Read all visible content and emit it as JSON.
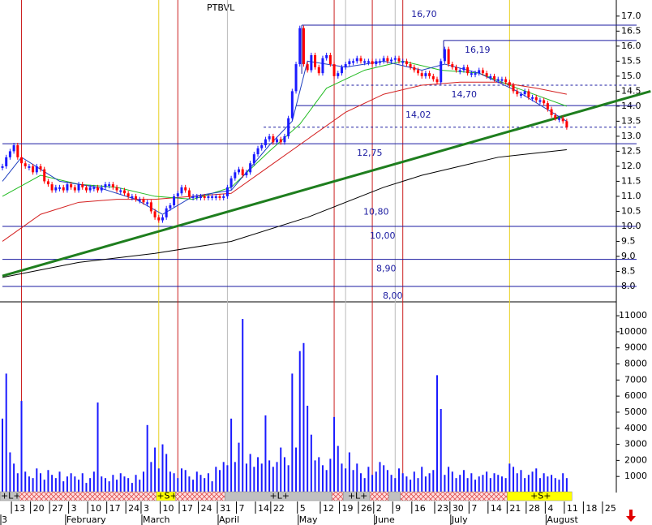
{
  "chart_data": {
    "type": "stock",
    "title": "PTBVL",
    "xlim": [
      0,
      161
    ],
    "xticks": [
      {
        "value": 3,
        "label": "13"
      },
      {
        "value": 8,
        "label": "20"
      },
      {
        "value": 13,
        "label": "27"
      },
      {
        "value": 18,
        "label": "3"
      },
      {
        "value": 23,
        "label": "10"
      },
      {
        "value": 28,
        "label": "17"
      },
      {
        "value": 33,
        "label": "24"
      },
      {
        "value": 37,
        "label": "3"
      },
      {
        "value": 42,
        "label": "10"
      },
      {
        "value": 47,
        "label": "17"
      },
      {
        "value": 52,
        "label": "24"
      },
      {
        "value": 57,
        "label": "31"
      },
      {
        "value": 62,
        "label": "7"
      },
      {
        "value": 67,
        "label": "14"
      },
      {
        "value": 71,
        "label": "22"
      },
      {
        "value": 78,
        "label": "5"
      },
      {
        "value": 84,
        "label": "12"
      },
      {
        "value": 89,
        "label": "19"
      },
      {
        "value": 94,
        "label": "26"
      },
      {
        "value": 98,
        "label": "2"
      },
      {
        "value": 103,
        "label": "9"
      },
      {
        "value": 108,
        "label": "16"
      },
      {
        "value": 114,
        "label": "23"
      },
      {
        "value": 118,
        "label": "30"
      },
      {
        "value": 123,
        "label": "7"
      },
      {
        "value": 128,
        "label": "14"
      },
      {
        "value": 133,
        "label": "21"
      },
      {
        "value": 138,
        "label": "28"
      },
      {
        "value": 143,
        "label": "4"
      },
      {
        "value": 148,
        "label": "11"
      },
      {
        "value": 153,
        "label": "18"
      },
      {
        "value": 158,
        "label": "25"
      }
    ],
    "month_ticks": [
      {
        "value": 0,
        "label": "3"
      },
      {
        "value": 17,
        "label": "February"
      },
      {
        "value": 37,
        "label": "March"
      },
      {
        "value": 57,
        "label": "April"
      },
      {
        "value": 78,
        "label": "May"
      },
      {
        "value": 98,
        "label": "June"
      },
      {
        "value": 118,
        "label": "July"
      },
      {
        "value": 143,
        "label": "August"
      }
    ],
    "ylim": [
      7.54,
      17.32
    ],
    "yticks": [
      {
        "value": 8,
        "label": "8.0"
      },
      8.5,
      {
        "value": 9,
        "label": "9.0"
      },
      9.5,
      {
        "value": 10,
        "label": "10.0"
      },
      10.5,
      {
        "value": 11,
        "label": "11.0"
      },
      11.5,
      {
        "value": 12,
        "label": "12.0"
      },
      12.5,
      {
        "value": 13,
        "label": "13.0"
      },
      13.5,
      {
        "value": 14,
        "label": "14.0"
      },
      14.5,
      {
        "value": 15,
        "label": "15.0"
      },
      15.5,
      {
        "value": 16,
        "label": "16.0"
      },
      16.5,
      {
        "value": 17,
        "label": "17.0"
      }
    ],
    "y2lim": [
      0,
      11560
    ],
    "y2ticks": [
      1000,
      2000,
      3000,
      4000,
      5000,
      6000,
      7000,
      8000,
      9000,
      10000,
      11000
    ],
    "up_color": "#1a1aff",
    "down_color": "#ff0000",
    "close": [
      12.0,
      12.3,
      12.5,
      12.7,
      12.3,
      12.1,
      12.0,
      12.0,
      11.8,
      12.0,
      11.9,
      11.5,
      11.4,
      11.2,
      11.3,
      11.3,
      11.2,
      11.4,
      11.3,
      11.2,
      11.4,
      11.3,
      11.2,
      11.3,
      11.3,
      11.2,
      11.3,
      11.4,
      11.4,
      11.3,
      11.2,
      11.2,
      11.1,
      11.0,
      11.0,
      10.9,
      10.9,
      10.8,
      10.8,
      10.5,
      10.3,
      10.2,
      10.3,
      10.6,
      10.7,
      11.0,
      11.1,
      11.3,
      11.2,
      11.0,
      11.0,
      11.0,
      11.0,
      10.95,
      11.0,
      11.0,
      11.0,
      10.95,
      11.0,
      11.3,
      11.6,
      11.8,
      11.9,
      11.7,
      11.8,
      12.1,
      12.4,
      12.6,
      12.7,
      12.9,
      13.0,
      12.8,
      12.9,
      12.8,
      13.0,
      13.6,
      14.5,
      15.4,
      16.6,
      15.4,
      15.2,
      15.7,
      15.3,
      15.1,
      15.6,
      15.7,
      15.4,
      15.0,
      15.1,
      15.3,
      15.4,
      15.5,
      15.5,
      15.6,
      15.5,
      15.5,
      15.5,
      15.4,
      15.5,
      15.5,
      15.6,
      15.5,
      15.55,
      15.6,
      15.5,
      15.5,
      15.4,
      15.3,
      15.2,
      15.1,
      15.0,
      15.1,
      15.0,
      14.9,
      14.8,
      15.5,
      15.9,
      15.4,
      15.3,
      15.2,
      15.2,
      15.3,
      15.1,
      15.1,
      15.1,
      15.2,
      15.1,
      15.0,
      15.0,
      14.9,
      14.9,
      14.9,
      14.8,
      14.7,
      14.5,
      14.4,
      14.4,
      14.5,
      14.3,
      14.3,
      14.2,
      14.2,
      14.1,
      13.9,
      13.7,
      13.6,
      13.6,
      13.5,
      13.3
    ],
    "volume": [
      4600,
      7400,
      2500,
      1800,
      1200,
      5700,
      1300,
      1000,
      900,
      1500,
      1200,
      800,
      1400,
      1100,
      900,
      1300,
      700,
      1000,
      1200,
      1000,
      800,
      1200,
      600,
      900,
      1300,
      5600,
      1000,
      900,
      700,
      1100,
      800,
      1200,
      1000,
      900,
      600,
      1100,
      800,
      1300,
      4200,
      1900,
      2800,
      1500,
      3000,
      2400,
      1300,
      1200,
      900,
      1500,
      1400,
      1000,
      800,
      1300,
      1100,
      900,
      1200,
      700,
      1600,
      1400,
      1900,
      1700,
      4600,
      1900,
      3100,
      10800,
      1800,
      2400,
      1600,
      2200,
      1800,
      4800,
      2000,
      1600,
      1900,
      2800,
      2200,
      1700,
      7400,
      2800,
      8800,
      9300,
      5400,
      3600,
      2000,
      2200,
      1700,
      1400,
      2100,
      4700,
      2900,
      1800,
      1500,
      2500,
      1400,
      1800,
      1200,
      900,
      1600,
      1100,
      1300,
      1900,
      1700,
      1400,
      1100,
      900,
      1500,
      1200,
      1000,
      800,
      1300,
      900,
      1600,
      1000,
      1200,
      1400,
      7300,
      5200,
      1100,
      1600,
      1300,
      900,
      1100,
      1400,
      900,
      1200,
      800,
      1000,
      1100,
      1300,
      900,
      1200,
      1100,
      1000,
      900,
      1800,
      1600,
      1200,
      1400,
      900,
      1100,
      1300,
      1500,
      900,
      1200,
      1000,
      1100,
      900,
      800,
      1200,
      900
    ],
    "volume_color": "#1a1aff",
    "averages": [
      {
        "color": "#000000",
        "x": [
          0,
          20,
          40,
          60,
          80,
          100,
          110,
          120,
          130,
          148
        ],
        "values": [
          8.3,
          8.8,
          9.1,
          9.5,
          10.3,
          11.3,
          11.7,
          12.0,
          12.3,
          12.55
        ]
      },
      {
        "color": "#d42020",
        "x": [
          0,
          10,
          20,
          30,
          40,
          50,
          60,
          70,
          80,
          90,
          100,
          110,
          120,
          130,
          140,
          148
        ],
        "values": [
          9.5,
          10.4,
          10.8,
          10.9,
          10.9,
          11.0,
          11.1,
          12.0,
          12.9,
          13.8,
          14.4,
          14.7,
          14.8,
          14.8,
          14.6,
          14.4
        ]
      },
      {
        "color": "#22bb22",
        "x": [
          0,
          10,
          20,
          30,
          40,
          50,
          60,
          70,
          78,
          85,
          95,
          105,
          115,
          125,
          135,
          148
        ],
        "values": [
          11.0,
          11.7,
          11.4,
          11.3,
          11.0,
          10.9,
          11.3,
          12.5,
          13.4,
          14.6,
          15.2,
          15.5,
          15.2,
          15.1,
          14.6,
          14.0
        ]
      },
      {
        "color": "#2040c0",
        "x": [
          0,
          5,
          15,
          25,
          35,
          42,
          50,
          60,
          70,
          76,
          80,
          90,
          100,
          110,
          116,
          125,
          135,
          148
        ],
        "values": [
          11.5,
          12.3,
          11.5,
          11.3,
          10.9,
          10.4,
          11.0,
          11.2,
          12.7,
          13.5,
          15.5,
          15.3,
          15.5,
          15.2,
          15.4,
          15.1,
          14.5,
          13.5
        ]
      }
    ],
    "trend_line": {
      "color": "#1e7e1e",
      "x": [
        0,
        170
      ],
      "values": [
        8.35,
        14.5
      ]
    },
    "levels": [
      {
        "value": 16.7,
        "label": "16,70",
        "x_start": 78.5,
        "dashed": false
      },
      {
        "value": 16.19,
        "label": "16,19",
        "x_start": 115.7,
        "dashed": false
      },
      {
        "value": 14.7,
        "label": "14,70",
        "x_start": 89,
        "dashed": true
      },
      {
        "value": 14.02,
        "label": "14,02",
        "x_start": 77,
        "dashed": false
      },
      {
        "value": 13.3,
        "label": null,
        "x_start": 68.5,
        "dashed": true
      },
      {
        "value": 12.75,
        "label": "12,75",
        "x_start": 0,
        "dashed": false
      },
      {
        "value": 10.8,
        "label": "10,80",
        "x_start": null,
        "dashed": false
      },
      {
        "value": 10.0,
        "label": "10,00",
        "x_start": 0,
        "dashed": false
      },
      {
        "value": 8.9,
        "label": "8,90",
        "x_start": 0,
        "dashed": false
      },
      {
        "value": 8.0,
        "label": "8,00",
        "x_start": 0,
        "dashed": false
      }
    ],
    "event_lines": [
      {
        "x": 5,
        "color": "#cc2020"
      },
      {
        "x": 41,
        "color": "#e8d020"
      },
      {
        "x": 46,
        "color": "#cc2020"
      },
      {
        "x": 59,
        "color": "#bbbbbb"
      },
      {
        "x": 87,
        "color": "#cc2020"
      },
      {
        "x": 90,
        "color": "#bbbbbb"
      },
      {
        "x": 97,
        "color": "#cc2020"
      },
      {
        "x": 103,
        "color": "#bbbbbb"
      },
      {
        "x": 105,
        "color": "#cc2020"
      },
      {
        "x": 133,
        "color": "#e8d020"
      }
    ],
    "signals": [
      {
        "from": 0,
        "to": 5,
        "label": "+L+",
        "kind": "long"
      },
      {
        "from": 5,
        "to": 41,
        "label": null,
        "kind": "flat"
      },
      {
        "from": 41,
        "to": 46,
        "label": "+S+",
        "kind": "short"
      },
      {
        "from": 46,
        "to": 59,
        "label": null,
        "kind": "flat"
      },
      {
        "from": 59,
        "to": 87,
        "label": "+L+",
        "kind": "long"
      },
      {
        "from": 87,
        "to": 90,
        "label": null,
        "kind": "flat"
      },
      {
        "from": 90,
        "to": 97,
        "label": "+L+",
        "kind": "long"
      },
      {
        "from": 97,
        "to": 102,
        "label": null,
        "kind": "flat"
      },
      {
        "from": 102,
        "to": 105,
        "label": null,
        "kind": "long"
      },
      {
        "from": 105,
        "to": 133,
        "label": null,
        "kind": "flat"
      },
      {
        "from": 133,
        "to": 150,
        "label": "+S+",
        "kind": "short"
      }
    ]
  }
}
